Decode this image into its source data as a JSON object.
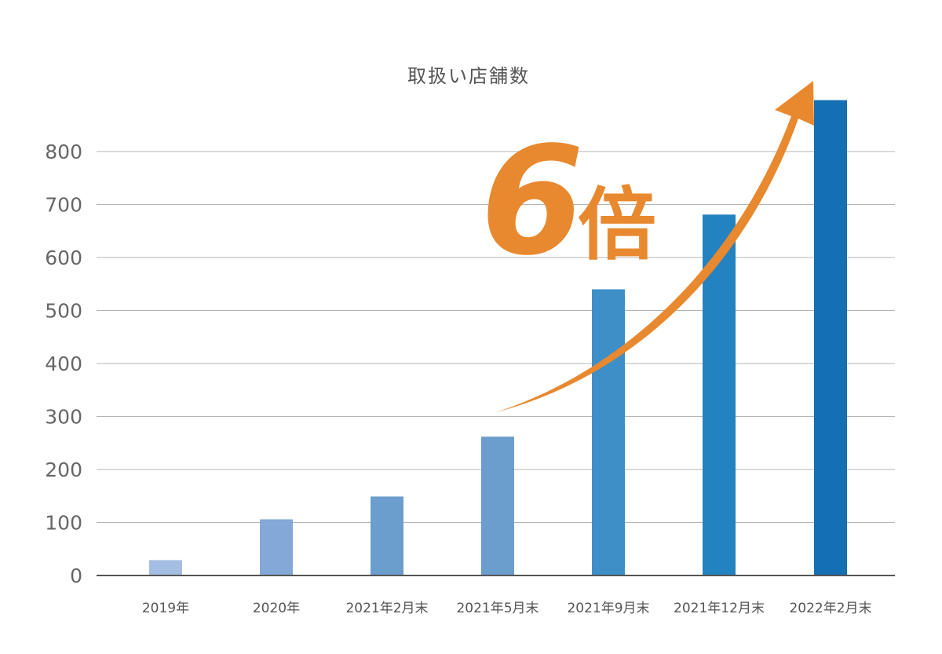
{
  "chart_data": {
    "type": "bar",
    "title": "取扱い店舗数",
    "categories": [
      "2019年",
      "2020年",
      "2021年2月末",
      "2021年5月末",
      "2021年9月末",
      "2021年12月末",
      "2022年2月末"
    ],
    "values": [
      29,
      106,
      149,
      262,
      540,
      681,
      897
    ],
    "yticks": [
      0,
      100,
      200,
      300,
      400,
      500,
      600,
      700,
      800
    ],
    "ylim": [
      0,
      900
    ],
    "grid": true,
    "bar_colors": [
      "#a3bde3",
      "#84a9d8",
      "#6b9dcd",
      "#6b9dcd",
      "#3e8ec7",
      "#2382c0",
      "#1470b3"
    ],
    "annotation": {
      "number": "6",
      "text": "倍",
      "color": "#e8892f"
    }
  }
}
